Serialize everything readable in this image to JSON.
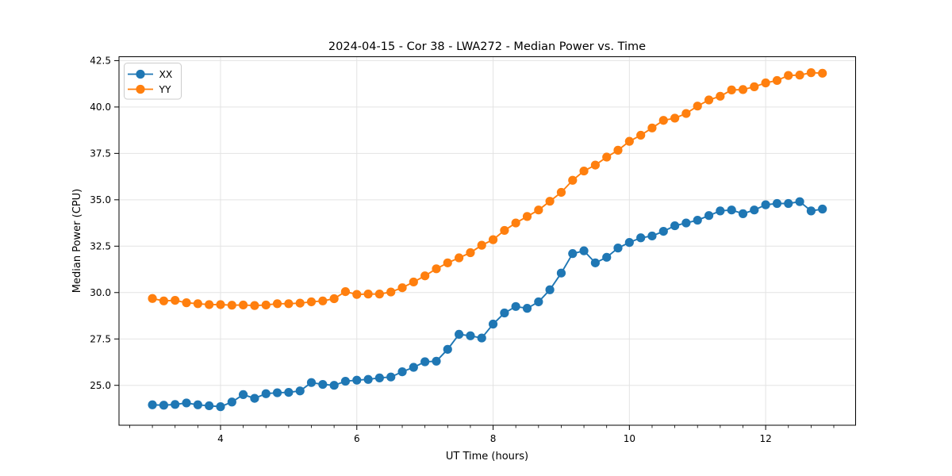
{
  "page": {
    "background": "#ffffff"
  },
  "chart_data": {
    "type": "line",
    "title": "2024-04-15 - Cor 38 - LWA272 - Median Power vs. Time",
    "xlabel": "UT Time (hours)",
    "ylabel": "Median Power (CPU)",
    "xlim": [
      2.51,
      13.32
    ],
    "ylim": [
      22.85,
      42.71
    ],
    "xticks": [
      4,
      6,
      8,
      10,
      12
    ],
    "yticks": [
      25.0,
      27.5,
      30.0,
      32.5,
      35.0,
      37.5,
      40.0,
      42.5
    ],
    "x_minor_step": 0.33333,
    "grid": true,
    "grid_color": "#e3e3e3",
    "axis_color": "#000000",
    "legend_position": "upper left",
    "x": [
      3.0,
      3.167,
      3.333,
      3.5,
      3.667,
      3.833,
      4.0,
      4.167,
      4.333,
      4.5,
      4.667,
      4.833,
      5.0,
      5.167,
      5.333,
      5.5,
      5.667,
      5.833,
      6.0,
      6.167,
      6.333,
      6.5,
      6.667,
      6.833,
      7.0,
      7.167,
      7.333,
      7.5,
      7.667,
      7.833,
      8.0,
      8.167,
      8.333,
      8.5,
      8.667,
      8.833,
      9.0,
      9.167,
      9.333,
      9.5,
      9.667,
      9.833,
      10.0,
      10.167,
      10.333,
      10.5,
      10.667,
      10.833,
      11.0,
      11.167,
      11.333,
      11.5,
      11.667,
      11.833,
      12.0,
      12.167,
      12.333,
      12.5,
      12.667,
      12.833
    ],
    "series": [
      {
        "name": "XX",
        "color": "#1f77b4",
        "values": [
          23.95,
          23.93,
          23.97,
          24.05,
          23.95,
          23.9,
          23.85,
          24.1,
          24.5,
          24.3,
          24.55,
          24.6,
          24.62,
          24.7,
          25.15,
          25.05,
          25.0,
          25.22,
          25.28,
          25.32,
          25.4,
          25.45,
          25.73,
          25.97,
          26.27,
          26.3,
          26.94,
          27.75,
          27.67,
          27.55,
          28.3,
          28.9,
          29.25,
          29.15,
          29.5,
          30.15,
          31.05,
          32.1,
          32.25,
          31.6,
          31.9,
          32.4,
          32.7,
          32.95,
          33.05,
          33.3,
          33.6,
          33.75,
          33.9,
          34.15,
          34.4,
          34.45,
          34.25,
          34.45,
          34.73,
          34.8,
          34.8,
          34.9,
          34.4,
          34.5
        ]
      },
      {
        "name": "YY",
        "color": "#ff7f0e",
        "values": [
          29.68,
          29.55,
          29.58,
          29.45,
          29.4,
          29.35,
          29.35,
          29.32,
          29.33,
          29.3,
          29.33,
          29.4,
          29.4,
          29.43,
          29.5,
          29.55,
          29.67,
          30.05,
          29.9,
          29.92,
          29.92,
          30.03,
          30.26,
          30.57,
          30.9,
          31.28,
          31.6,
          31.87,
          32.15,
          32.55,
          32.85,
          33.35,
          33.75,
          34.1,
          34.45,
          34.92,
          35.4,
          36.05,
          36.55,
          36.87,
          37.3,
          37.67,
          38.15,
          38.48,
          38.87,
          39.28,
          39.4,
          39.65,
          40.05,
          40.38,
          40.58,
          40.92,
          40.94,
          41.09,
          41.3,
          41.43,
          41.7,
          41.72,
          41.85,
          41.82
        ]
      }
    ]
  }
}
